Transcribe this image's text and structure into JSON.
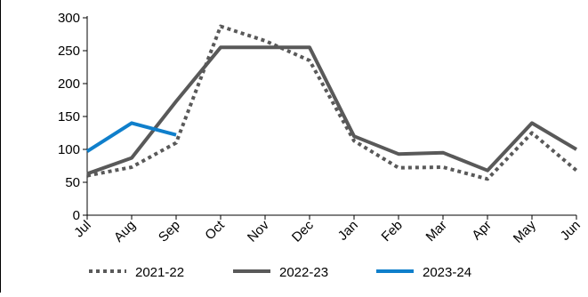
{
  "chart_data": {
    "type": "line",
    "title": "",
    "xlabel": "",
    "ylabel": "",
    "categories": [
      "Jul",
      "Aug",
      "Sep",
      "Oct",
      "Nov",
      "Dec",
      "Jan",
      "Feb",
      "Mar",
      "Apr",
      "May",
      "Jun"
    ],
    "ylim": [
      0,
      300
    ],
    "yticks": [
      "0",
      "50",
      "100",
      "150",
      "200",
      "250",
      "300"
    ],
    "grid": false,
    "legend_position": "bottom",
    "series": [
      {
        "name": "2021-22",
        "color": "#595959",
        "style": "dotted",
        "values": [
          60,
          73,
          110,
          287,
          265,
          235,
          113,
          72,
          73,
          55,
          125,
          68
        ]
      },
      {
        "name": "2022-23",
        "color": "#595959",
        "style": "solid",
        "values": [
          63,
          87,
          173,
          255,
          255,
          255,
          120,
          93,
          95,
          68,
          140,
          100
        ]
      },
      {
        "name": "2023-24",
        "color": "#0f7fcb",
        "style": "solid",
        "values": [
          97,
          140,
          122,
          null,
          null,
          null,
          null,
          null,
          null,
          null,
          null,
          null
        ]
      }
    ]
  }
}
